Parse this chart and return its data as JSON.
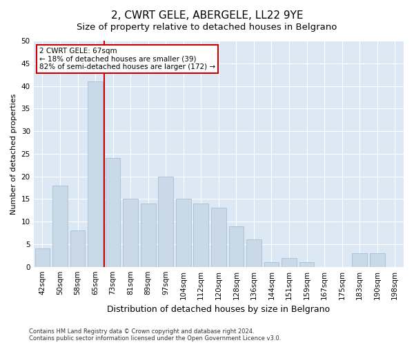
{
  "title": "2, CWRT GELE, ABERGELE, LL22 9YE",
  "subtitle": "Size of property relative to detached houses in Belgrano",
  "xlabel": "Distribution of detached houses by size in Belgrano",
  "ylabel": "Number of detached properties",
  "categories": [
    "42sqm",
    "50sqm",
    "58sqm",
    "65sqm",
    "73sqm",
    "81sqm",
    "89sqm",
    "97sqm",
    "104sqm",
    "112sqm",
    "120sqm",
    "128sqm",
    "136sqm",
    "144sqm",
    "151sqm",
    "159sqm",
    "167sqm",
    "175sqm",
    "183sqm",
    "190sqm",
    "198sqm"
  ],
  "values": [
    4,
    18,
    8,
    41,
    24,
    15,
    14,
    20,
    15,
    14,
    13,
    9,
    6,
    1,
    2,
    1,
    0,
    0,
    3,
    3,
    0
  ],
  "bar_color": "#c9d9e8",
  "bar_edgecolor": "#aабсce",
  "redline_index": 4,
  "redline_color": "#cc0000",
  "annotation_text": "2 CWRT GELE: 67sqm\n← 18% of detached houses are smaller (39)\n82% of semi-detached houses are larger (172) →",
  "annotation_box_edgecolor": "#cc0000",
  "ylim": [
    0,
    50
  ],
  "yticks": [
    0,
    5,
    10,
    15,
    20,
    25,
    30,
    35,
    40,
    45,
    50
  ],
  "plot_background": "#dce9f5",
  "footer_line1": "Contains HM Land Registry data © Crown copyright and database right 2024.",
  "footer_line2": "Contains public sector information licensed under the Open Government Licence v3.0.",
  "title_fontsize": 11,
  "subtitle_fontsize": 9.5,
  "tick_fontsize": 7.5,
  "xlabel_fontsize": 9,
  "ylabel_fontsize": 8,
  "annotation_fontsize": 7.5
}
